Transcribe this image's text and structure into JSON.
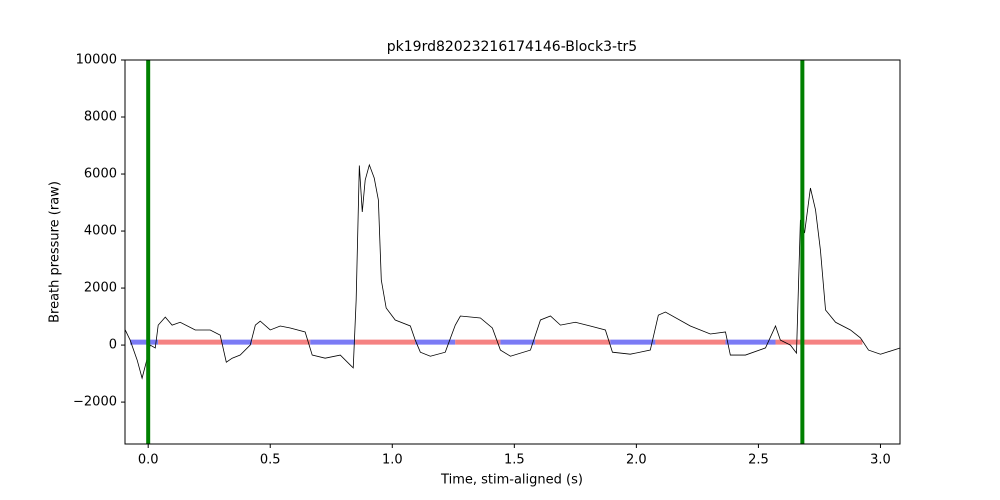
{
  "chart_data": {
    "type": "line",
    "title": "pk19rd82023216174146-Block3-tr5",
    "x_label": "Time, stim-aligned (s)",
    "y_label": "Breath pressure (raw)",
    "xlim": [
      -0.095,
      3.08
    ],
    "ylim": [
      -3470,
      10000
    ],
    "xticks": [
      {
        "value": 0,
        "label": "0.0"
      },
      {
        "value": 0.5,
        "label": "0.5"
      },
      {
        "value": 1,
        "label": "1.0"
      },
      {
        "value": 1.5,
        "label": "1.5"
      },
      {
        "value": 2,
        "label": "2.0"
      },
      {
        "value": 2.5,
        "label": "2.5"
      },
      {
        "value": 3,
        "label": "3.0"
      }
    ],
    "yticks": [
      {
        "value": -2000,
        "label": "−2000"
      },
      0,
      2000,
      4000,
      6000,
      8000,
      10000
    ],
    "x": [
      -0.094,
      -0.074,
      -0.045,
      -0.025,
      -0.008,
      0.008,
      0.029,
      0.041,
      0.07,
      0.098,
      0.131,
      0.193,
      0.254,
      0.295,
      0.32,
      0.344,
      0.377,
      0.418,
      0.439,
      0.459,
      0.5,
      0.541,
      0.582,
      0.643,
      0.672,
      0.725,
      0.787,
      0.828,
      0.84,
      0.852,
      0.865,
      0.877,
      0.889,
      0.906,
      0.926,
      0.943,
      0.955,
      0.975,
      1.012,
      1.074,
      1.094,
      1.115,
      1.156,
      1.217,
      1.258,
      1.279,
      1.361,
      1.41,
      1.443,
      1.484,
      1.566,
      1.607,
      1.648,
      1.689,
      1.75,
      1.811,
      1.873,
      1.902,
      1.975,
      2.057,
      2.09,
      2.119,
      2.221,
      2.303,
      2.365,
      2.385,
      2.447,
      2.529,
      2.57,
      2.59,
      2.631,
      2.656,
      2.672,
      2.689,
      2.713,
      2.734,
      2.754,
      2.775,
      2.816,
      2.877,
      2.918,
      2.951,
      3.0,
      3.082
    ],
    "series": [
      {
        "color": "#000000",
        "values": [
          530,
          175,
          -530,
          -1160,
          -600,
          0,
          -100,
          700,
          980,
          700,
          800,
          530,
          530,
          350,
          -600,
          -460,
          -350,
          0,
          700,
          840,
          530,
          670,
          600,
          460,
          -350,
          -460,
          -350,
          -700,
          -800,
          1580,
          6300,
          4670,
          5790,
          6320,
          5860,
          5090,
          2280,
          1300,
          880,
          670,
          175,
          -250,
          -390,
          -250,
          700,
          1020,
          950,
          600,
          -175,
          -390,
          -175,
          880,
          1020,
          700,
          800,
          670,
          530,
          -250,
          -320,
          -175,
          1050,
          1160,
          670,
          390,
          460,
          -350,
          -350,
          -100,
          670,
          175,
          0,
          -280,
          4390,
          3930,
          5510,
          4740,
          3330,
          1230,
          800,
          530,
          250,
          -175,
          -320,
          -100
        ]
      }
    ],
    "spans": [
      {
        "x": [
          -0.074,
          0.041
        ],
        "y": 105,
        "color": "#7b7bf5"
      },
      {
        "x": [
          0.041,
          0.303
        ],
        "y": 105,
        "color": "#f58282"
      },
      {
        "x": [
          0.303,
          0.426
        ],
        "y": 105,
        "color": "#7b7bf5"
      },
      {
        "x": [
          0.426,
          0.664
        ],
        "y": 105,
        "color": "#f58282"
      },
      {
        "x": [
          0.664,
          0.848
        ],
        "y": 105,
        "color": "#7b7bf5"
      },
      {
        "x": [
          0.848,
          1.094
        ],
        "y": 105,
        "color": "#f58282"
      },
      {
        "x": [
          1.094,
          1.258
        ],
        "y": 105,
        "color": "#7b7bf5"
      },
      {
        "x": [
          1.258,
          1.443
        ],
        "y": 105,
        "color": "#f58282"
      },
      {
        "x": [
          1.443,
          1.586
        ],
        "y": 105,
        "color": "#7b7bf5"
      },
      {
        "x": [
          1.586,
          1.893
        ],
        "y": 105,
        "color": "#f58282"
      },
      {
        "x": [
          1.893,
          2.078
        ],
        "y": 105,
        "color": "#7b7bf5"
      },
      {
        "x": [
          2.078,
          2.365
        ],
        "y": 105,
        "color": "#f58282"
      },
      {
        "x": [
          2.365,
          2.57
        ],
        "y": 105,
        "color": "#7b7bf5"
      },
      {
        "x": [
          2.57,
          2.926
        ],
        "y": 105,
        "color": "#f58282"
      }
    ],
    "vlines": {
      "x": [
        0,
        2.68
      ],
      "color": "#008000"
    }
  }
}
